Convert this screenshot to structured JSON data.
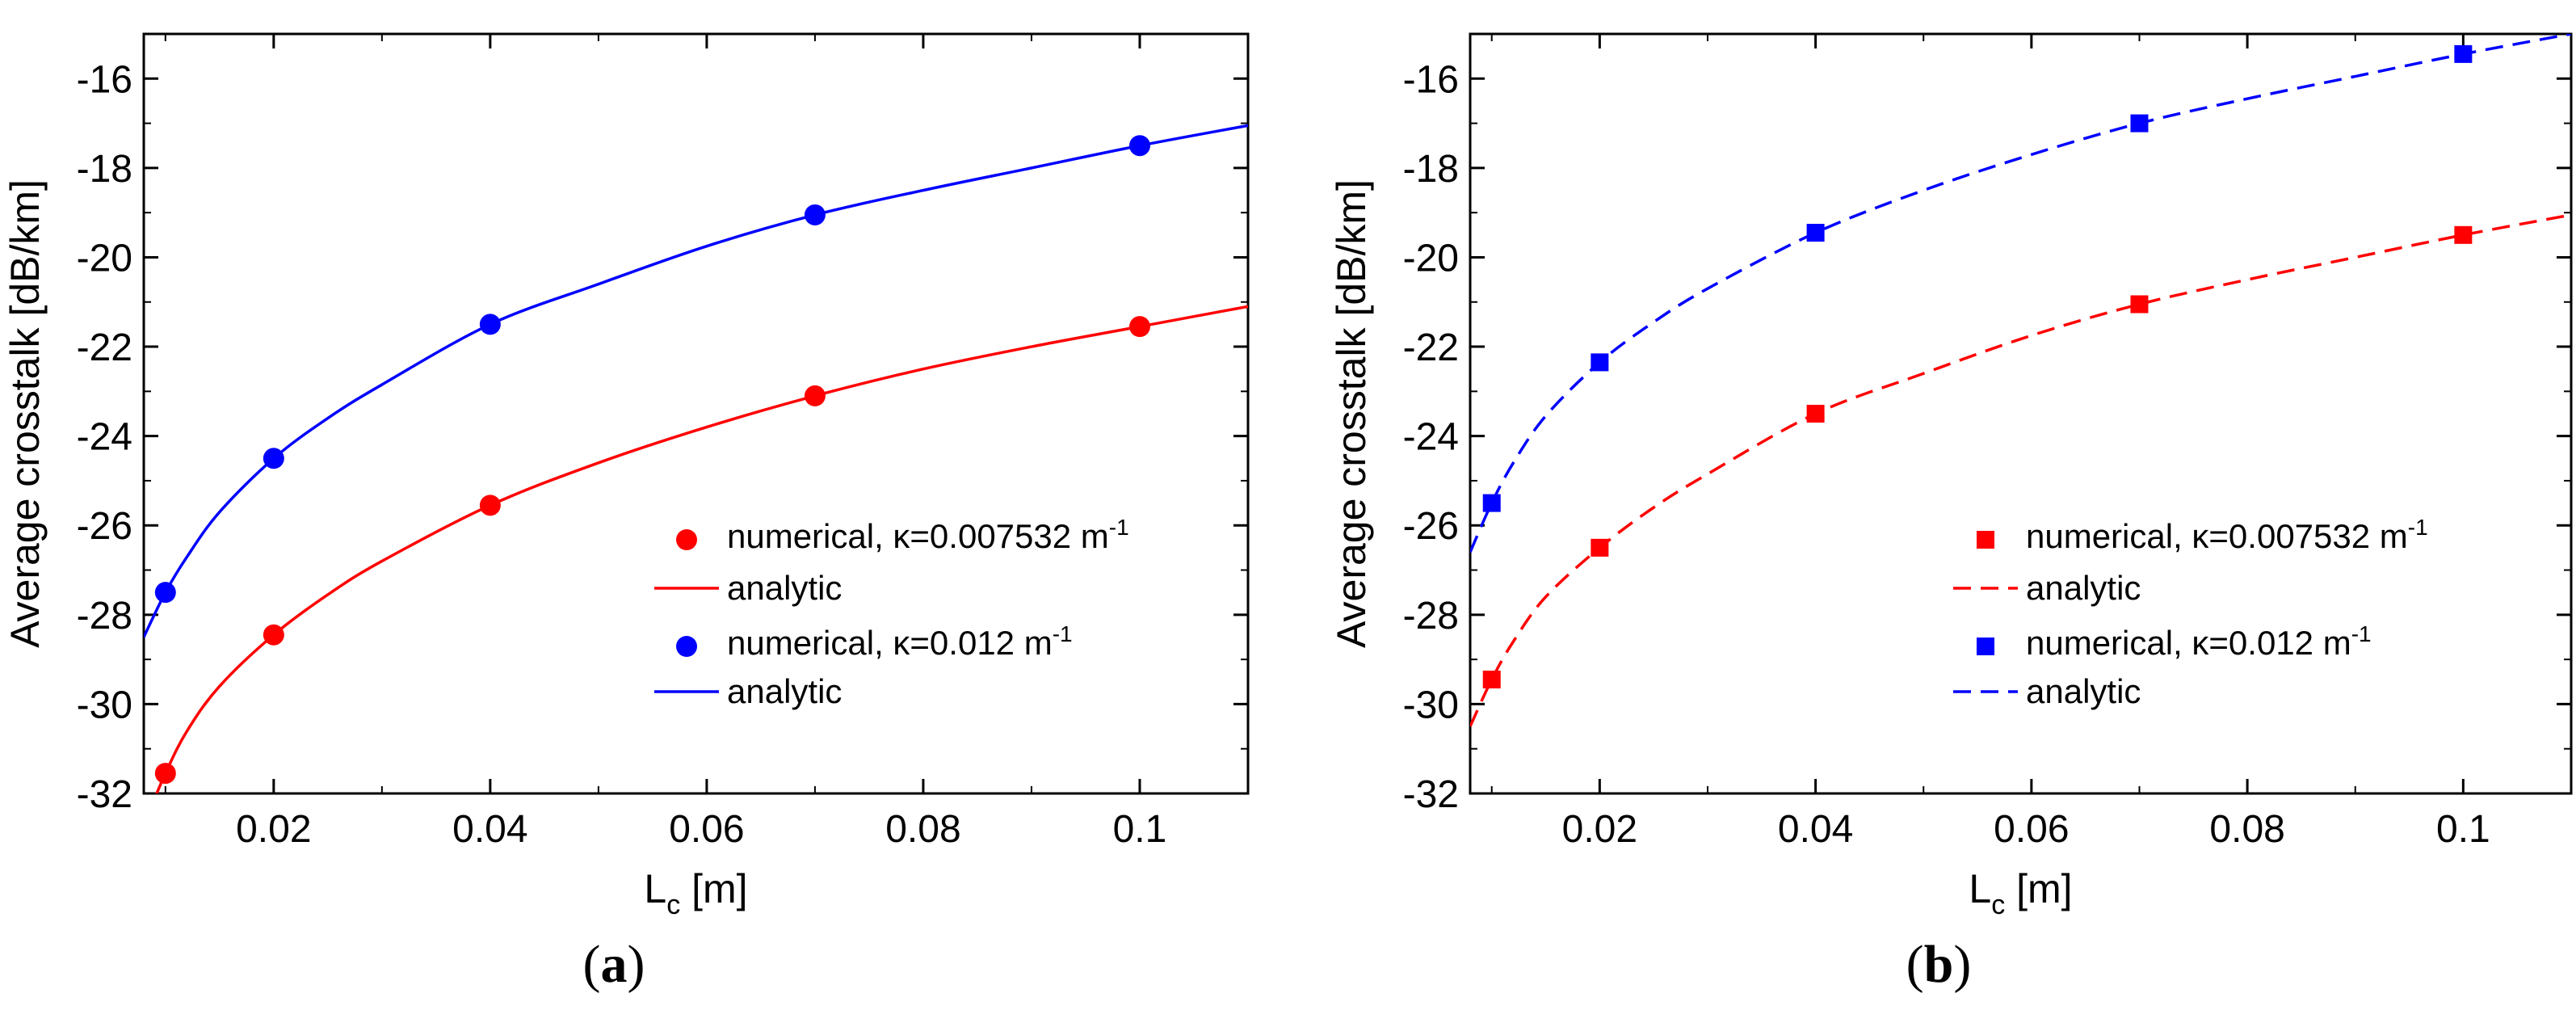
{
  "chart_data": [
    {
      "type": "line",
      "panel_label": "a",
      "marker": "circle",
      "analytic_style": "solid",
      "xlabel": "L",
      "xlabel_subscript": "c",
      "xlabel_unit": " [m]",
      "ylabel": "Average crosstalk [dB/km]",
      "xlim": [
        0.008,
        0.11
      ],
      "ylim": [
        -32,
        -15
      ],
      "xticks": [
        0.02,
        0.04,
        0.06,
        0.08,
        0.1
      ],
      "xtick_labels": [
        "0.02",
        "0.04",
        "0.06",
        "0.08",
        "0.1"
      ],
      "yticks": [
        -32,
        -30,
        -28,
        -26,
        -24,
        -22,
        -20,
        -18,
        -16
      ],
      "ytick_labels": [
        "-32",
        "-30",
        "-28",
        "-26",
        "-24",
        "-22",
        "-20",
        "-18",
        "-16"
      ],
      "legend_position": "bottom-right",
      "series": [
        {
          "name": "numerical, κ=0.007532 m",
          "legend_sup": "-1",
          "color": "#ff0000",
          "kind": "markers",
          "x": [
            0.01,
            0.02,
            0.04,
            0.07,
            0.1
          ],
          "y": [
            -31.55,
            -28.45,
            -25.55,
            -23.1,
            -21.55
          ]
        },
        {
          "name": "analytic",
          "color": "#ff0000",
          "kind": "curve",
          "x": [
            0.008,
            0.01,
            0.012,
            0.015,
            0.02,
            0.025,
            0.03,
            0.04,
            0.05,
            0.06,
            0.07,
            0.08,
            0.09,
            0.1,
            0.11
          ],
          "y": [
            -32.7,
            -31.55,
            -30.6,
            -29.6,
            -28.45,
            -27.55,
            -26.8,
            -25.55,
            -24.6,
            -23.8,
            -23.1,
            -22.5,
            -22.0,
            -21.55,
            -21.1
          ]
        },
        {
          "name": "numerical, κ=0.012 m",
          "legend_sup": "-1",
          "color": "#0000ff",
          "kind": "markers",
          "x": [
            0.01,
            0.02,
            0.04,
            0.07,
            0.1
          ],
          "y": [
            -27.5,
            -24.5,
            -21.5,
            -19.05,
            -17.5
          ]
        },
        {
          "name": "analytic",
          "color": "#0000ff",
          "kind": "curve",
          "x": [
            0.008,
            0.01,
            0.012,
            0.015,
            0.02,
            0.025,
            0.03,
            0.04,
            0.05,
            0.06,
            0.07,
            0.08,
            0.09,
            0.1,
            0.11
          ],
          "y": [
            -28.5,
            -27.5,
            -26.7,
            -25.7,
            -24.5,
            -23.6,
            -22.85,
            -21.5,
            -20.6,
            -19.75,
            -19.05,
            -18.5,
            -18.0,
            -17.5,
            -17.05
          ]
        }
      ]
    },
    {
      "type": "line",
      "panel_label": "b",
      "marker": "square",
      "analytic_style": "dashed",
      "xlabel": "L",
      "xlabel_subscript": "c",
      "xlabel_unit": " [m]",
      "ylabel": "Average crosstalk [dB/km]",
      "xlim": [
        0.008,
        0.11
      ],
      "ylim": [
        -32,
        -15
      ],
      "xticks": [
        0.02,
        0.04,
        0.06,
        0.08,
        0.1
      ],
      "xtick_labels": [
        "0.02",
        "0.04",
        "0.06",
        "0.08",
        "0.1"
      ],
      "yticks": [
        -32,
        -30,
        -28,
        -26,
        -24,
        -22,
        -20,
        -18,
        -16
      ],
      "ytick_labels": [
        "-32",
        "-30",
        "-28",
        "-26",
        "-24",
        "-22",
        "-20",
        "-18",
        "-16"
      ],
      "legend_position": "bottom-right",
      "series": [
        {
          "name": "numerical, κ=0.007532 m",
          "legend_sup": "-1",
          "color": "#ff0000",
          "kind": "markers",
          "x": [
            0.01,
            0.02,
            0.04,
            0.07,
            0.1
          ],
          "y": [
            -29.45,
            -26.5,
            -23.5,
            -21.05,
            -19.5
          ]
        },
        {
          "name": "analytic",
          "color": "#ff0000",
          "kind": "curve",
          "x": [
            0.008,
            0.01,
            0.012,
            0.015,
            0.02,
            0.025,
            0.03,
            0.04,
            0.05,
            0.06,
            0.07,
            0.08,
            0.09,
            0.1,
            0.11
          ],
          "y": [
            -30.5,
            -29.45,
            -28.6,
            -27.6,
            -26.5,
            -25.6,
            -24.85,
            -23.5,
            -22.6,
            -21.75,
            -21.05,
            -20.5,
            -20.0,
            -19.5,
            -19.05
          ]
        },
        {
          "name": "numerical, κ=0.012 m",
          "legend_sup": "-1",
          "color": "#0000ff",
          "kind": "markers",
          "x": [
            0.01,
            0.02,
            0.04,
            0.07,
            0.1
          ],
          "y": [
            -25.5,
            -22.35,
            -19.45,
            -17.0,
            -15.45
          ]
        },
        {
          "name": "analytic",
          "color": "#0000ff",
          "kind": "curve",
          "x": [
            0.008,
            0.01,
            0.012,
            0.015,
            0.02,
            0.025,
            0.03,
            0.04,
            0.05,
            0.06,
            0.07,
            0.08,
            0.09,
            0.1,
            0.11
          ],
          "y": [
            -26.6,
            -25.5,
            -24.6,
            -23.55,
            -22.35,
            -21.45,
            -20.7,
            -19.45,
            -18.5,
            -17.7,
            -17.0,
            -16.45,
            -15.95,
            -15.45,
            -15.0
          ]
        }
      ]
    }
  ]
}
